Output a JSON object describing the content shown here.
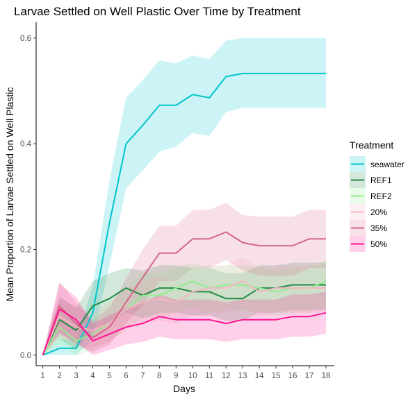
{
  "chart_data": {
    "type": "line",
    "title": "Larvae Settled on Well Plastic Over Time by Treatment",
    "xlabel": "Days",
    "ylabel": "Mean Proportion of Larvae Settled on Well Plastic",
    "x": [
      1,
      2,
      3,
      4,
      5,
      6,
      7,
      8,
      9,
      10,
      11,
      12,
      13,
      14,
      15,
      16,
      17,
      18
    ],
    "xlim": [
      0.6,
      18.5
    ],
    "ylim": [
      -0.02,
      0.63
    ],
    "yticks": [
      0.0,
      0.2,
      0.4,
      0.6
    ],
    "ytick_labels": [
      "0.0",
      "0.2",
      "0.4",
      "0.6"
    ],
    "grid": false,
    "legend": {
      "title": "Treatment",
      "placement": "right"
    },
    "series": [
      {
        "name": "seawater",
        "color": "#00c5cd",
        "values": [
          0.0,
          0.013,
          0.013,
          0.08,
          0.25,
          0.4,
          0.435,
          0.473,
          0.473,
          0.493,
          0.487,
          0.527,
          0.533,
          0.533,
          0.533,
          0.533,
          0.533,
          0.533
        ],
        "lower": [
          0.0,
          0.0,
          0.0,
          0.03,
          0.17,
          0.315,
          0.35,
          0.385,
          0.395,
          0.42,
          0.415,
          0.46,
          0.468,
          0.468,
          0.468,
          0.468,
          0.468,
          0.468
        ],
        "upper": [
          0.0,
          0.03,
          0.03,
          0.13,
          0.33,
          0.487,
          0.52,
          0.558,
          0.552,
          0.567,
          0.56,
          0.595,
          0.6,
          0.6,
          0.6,
          0.6,
          0.6,
          0.6
        ]
      },
      {
        "name": "REF1",
        "color": "#238b45",
        "values": [
          0.0,
          0.067,
          0.047,
          0.093,
          0.107,
          0.127,
          0.113,
          0.127,
          0.127,
          0.12,
          0.12,
          0.107,
          0.107,
          0.127,
          0.127,
          0.133,
          0.133,
          0.133
        ],
        "lower": [
          0.0,
          0.03,
          0.01,
          0.05,
          0.06,
          0.08,
          0.07,
          0.08,
          0.08,
          0.075,
          0.075,
          0.065,
          0.065,
          0.08,
          0.08,
          0.085,
          0.085,
          0.085
        ],
        "upper": [
          0.0,
          0.11,
          0.09,
          0.14,
          0.155,
          0.165,
          0.16,
          0.17,
          0.17,
          0.165,
          0.165,
          0.155,
          0.155,
          0.17,
          0.17,
          0.175,
          0.175,
          0.175
        ]
      },
      {
        "name": "REF2",
        "color": "#90ee90",
        "values": [
          0.0,
          0.053,
          0.027,
          0.04,
          0.06,
          0.087,
          0.113,
          0.113,
          0.127,
          0.14,
          0.127,
          0.133,
          0.133,
          0.127,
          0.12,
          0.127,
          0.127,
          0.14
        ],
        "lower": [
          0.0,
          0.02,
          0.0,
          0.01,
          0.025,
          0.05,
          0.07,
          0.07,
          0.08,
          0.09,
          0.08,
          0.085,
          0.085,
          0.08,
          0.075,
          0.08,
          0.08,
          0.09
        ],
        "upper": [
          0.0,
          0.09,
          0.06,
          0.075,
          0.1,
          0.125,
          0.155,
          0.155,
          0.165,
          0.175,
          0.165,
          0.17,
          0.17,
          0.165,
          0.16,
          0.165,
          0.165,
          0.18
        ]
      },
      {
        "name": "20%",
        "color": "#f4b6c2",
        "values": [
          0.0,
          0.073,
          0.053,
          0.047,
          0.06,
          0.087,
          0.1,
          0.107,
          0.1,
          0.12,
          0.127,
          0.127,
          0.14,
          0.12,
          0.127,
          0.127,
          0.127,
          0.127
        ],
        "lower": [
          0.0,
          0.035,
          0.015,
          0.015,
          0.025,
          0.05,
          0.06,
          0.065,
          0.06,
          0.075,
          0.08,
          0.08,
          0.09,
          0.075,
          0.08,
          0.08,
          0.08,
          0.08
        ],
        "upper": [
          0.0,
          0.11,
          0.09,
          0.08,
          0.1,
          0.125,
          0.14,
          0.15,
          0.14,
          0.165,
          0.17,
          0.17,
          0.185,
          0.165,
          0.17,
          0.17,
          0.17,
          0.17
        ]
      },
      {
        "name": "35%",
        "color": "#d6668a",
        "values": [
          0.0,
          0.093,
          0.06,
          0.033,
          0.053,
          0.1,
          0.147,
          0.193,
          0.193,
          0.22,
          0.22,
          0.233,
          0.213,
          0.207,
          0.207,
          0.207,
          0.22,
          0.22
        ],
        "lower": [
          0.0,
          0.045,
          0.02,
          0.005,
          0.02,
          0.06,
          0.095,
          0.14,
          0.14,
          0.165,
          0.165,
          0.18,
          0.16,
          0.15,
          0.15,
          0.15,
          0.165,
          0.165
        ],
        "upper": [
          0.0,
          0.14,
          0.1,
          0.065,
          0.09,
          0.145,
          0.2,
          0.245,
          0.245,
          0.275,
          0.275,
          0.288,
          0.265,
          0.262,
          0.262,
          0.262,
          0.275,
          0.275
        ]
      },
      {
        "name": "50%",
        "color": "#ff1493",
        "values": [
          0.0,
          0.087,
          0.067,
          0.027,
          0.04,
          0.053,
          0.06,
          0.073,
          0.067,
          0.067,
          0.067,
          0.06,
          0.067,
          0.067,
          0.067,
          0.073,
          0.073,
          0.08
        ],
        "lower": [
          0.0,
          0.04,
          0.025,
          0.0,
          0.01,
          0.02,
          0.025,
          0.035,
          0.03,
          0.03,
          0.03,
          0.025,
          0.03,
          0.03,
          0.03,
          0.035,
          0.035,
          0.04
        ],
        "upper": [
          0.0,
          0.135,
          0.11,
          0.06,
          0.075,
          0.09,
          0.1,
          0.115,
          0.105,
          0.105,
          0.105,
          0.1,
          0.105,
          0.105,
          0.105,
          0.115,
          0.115,
          0.12
        ]
      }
    ]
  }
}
